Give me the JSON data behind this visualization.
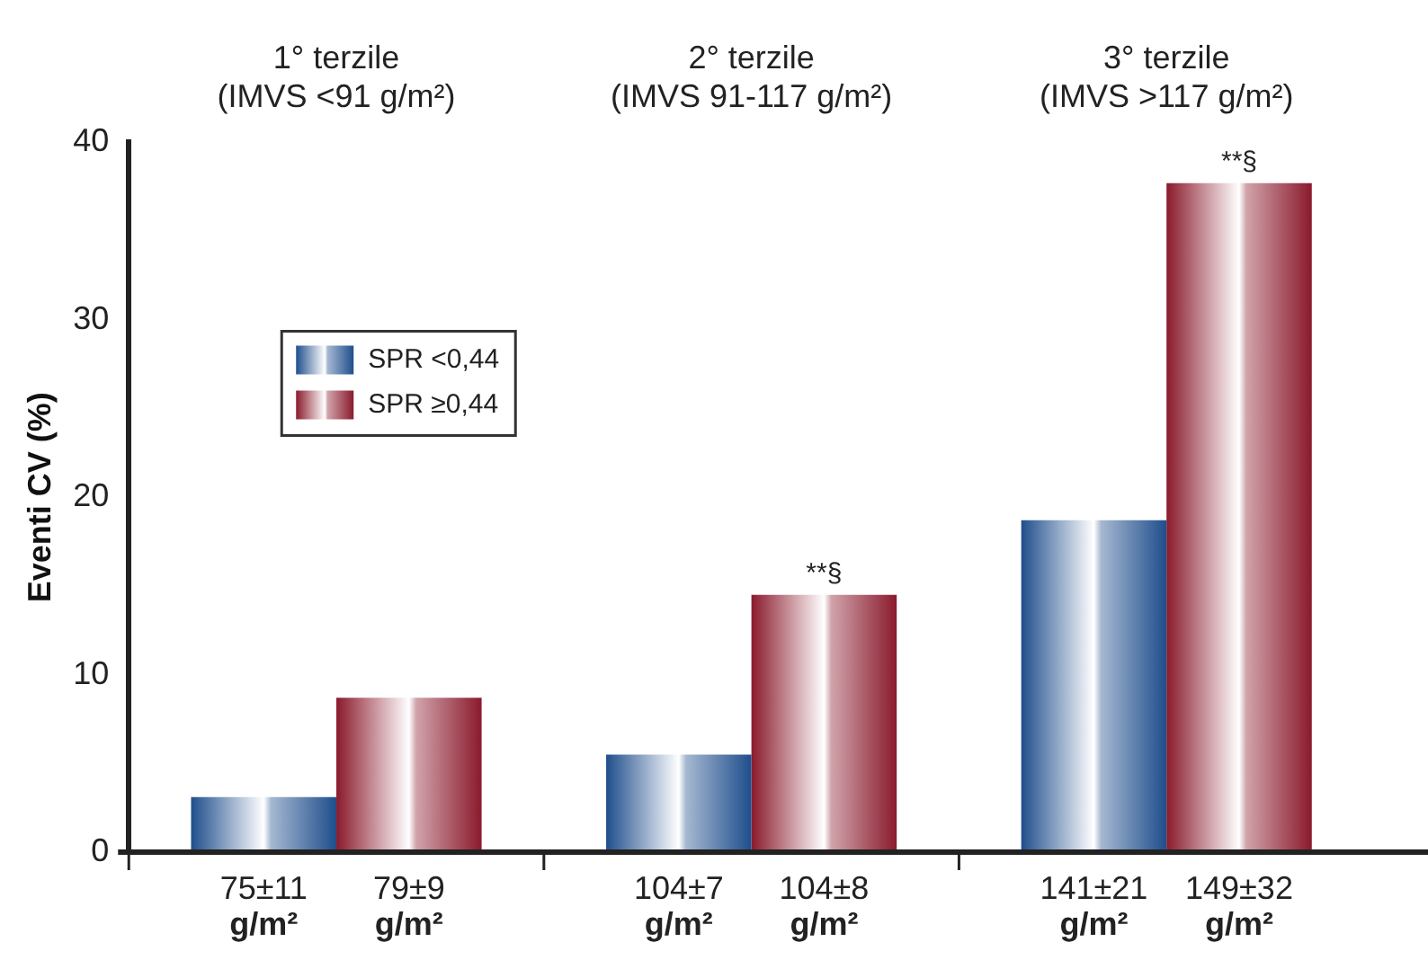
{
  "chart_data": {
    "type": "bar",
    "ylabel": "Eventi CV (%)",
    "categories": [
      "1° terzile\n(IMVS <91 g/m²)",
      "2° terzile\n(IMVS 91-117 g/m²)",
      "3° terzile\n(IMVS >117 g/m²)"
    ],
    "series": [
      {
        "name": "SPR <0,44",
        "color": "#1f4e8c",
        "values": [
          3.1,
          5.5,
          18.7
        ]
      },
      {
        "name": "SPR ≥0,44",
        "color": "#8a1a2c",
        "values": [
          8.7,
          14.5,
          37.7
        ]
      }
    ],
    "ylim": [
      0,
      40
    ],
    "yticks": [
      0,
      10,
      20,
      30,
      40
    ],
    "grid": false,
    "legend": "top left",
    "annotations": [
      "75±11\ng/m²",
      "79±9\ng/m²",
      "104±7\ng/m²",
      "104±8\ng/m²",
      "141±21\ng/m²",
      "149±32\ng/m²",
      {
        "text": "**§",
        "x": "2° terzile\n(IMVS 91-117 g/m²)",
        "y": 14.5
      },
      {
        "text": "**§",
        "x": "3° terzile\n(IMVS >117 g/m²)",
        "y": 37.7
      }
    ]
  }
}
